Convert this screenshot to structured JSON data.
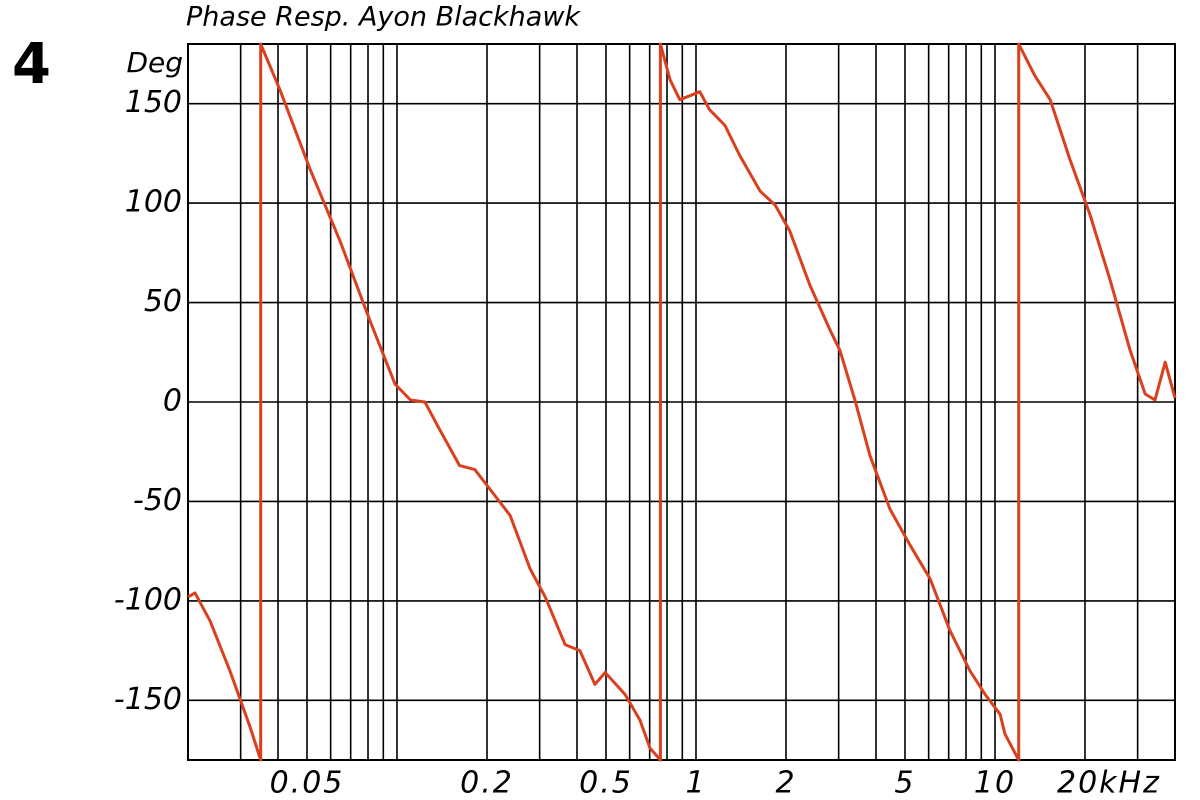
{
  "chart_data": {
    "type": "line",
    "figure_number": "4",
    "title": "Phase Resp. Ayon Blackhawk",
    "ylabel": "Deg",
    "x_log": true,
    "grid": true,
    "color": "#d9401e",
    "xlim": [
      0.02,
      40
    ],
    "ylim": [
      -180,
      180
    ],
    "xticks": [
      0.05,
      0.2,
      0.5,
      1,
      2,
      5,
      10,
      {
        "value": 20,
        "label": "20kHz"
      }
    ],
    "yticks": [
      -150,
      -100,
      -50,
      0,
      50,
      100,
      150
    ],
    "x_grid": [
      0.03,
      0.04,
      0.05,
      0.06,
      0.07,
      0.08,
      0.09,
      0.1,
      0.2,
      0.3,
      0.4,
      0.5,
      0.6,
      0.7,
      0.8,
      0.9,
      1,
      2,
      3,
      4,
      5,
      6,
      7,
      8,
      9,
      10,
      20,
      30
    ],
    "x": [
      0.02,
      0.0211,
      0.0237,
      0.0276,
      0.0322,
      0.035,
      0.035,
      0.0406,
      0.0512,
      0.0645,
      0.0812,
      0.0985,
      0.111,
      0.124,
      0.139,
      0.162,
      0.182,
      0.205,
      0.239,
      0.279,
      0.313,
      0.365,
      0.409,
      0.459,
      0.497,
      0.579,
      0.65,
      0.702,
      0.76,
      0.76,
      0.819,
      0.883,
      0.955,
      1.03,
      1.11,
      1.25,
      1.4,
      1.64,
      1.84,
      2.06,
      2.4,
      2.81,
      3.03,
      3.4,
      3.82,
      4.46,
      5.2,
      6.07,
      7.07,
      8.24,
      9.27,
      10.4,
      10.8,
      12,
      12,
      13.6,
      15.3,
      17.8,
      20.8,
      24.3,
      28.3,
      31.8,
      34.3,
      37.1,
      40
    ],
    "values": [
      -98,
      -96,
      -110,
      -135,
      -163,
      -180,
      180,
      157,
      117,
      81,
      41,
      9,
      1,
      0,
      -14,
      -32,
      -34,
      -44,
      -57,
      -84,
      -98,
      -122,
      -125,
      -142,
      -136,
      -147,
      -160,
      -174,
      -180,
      180,
      162,
      152,
      154,
      156,
      147,
      139,
      124,
      106,
      99,
      86,
      59,
      36,
      26,
      1,
      -27,
      -54,
      -72,
      -89,
      -115,
      -135,
      -147,
      -157,
      -167,
      -180,
      180,
      164,
      152,
      122,
      94,
      61,
      26,
      4,
      1,
      20,
      2
    ]
  }
}
